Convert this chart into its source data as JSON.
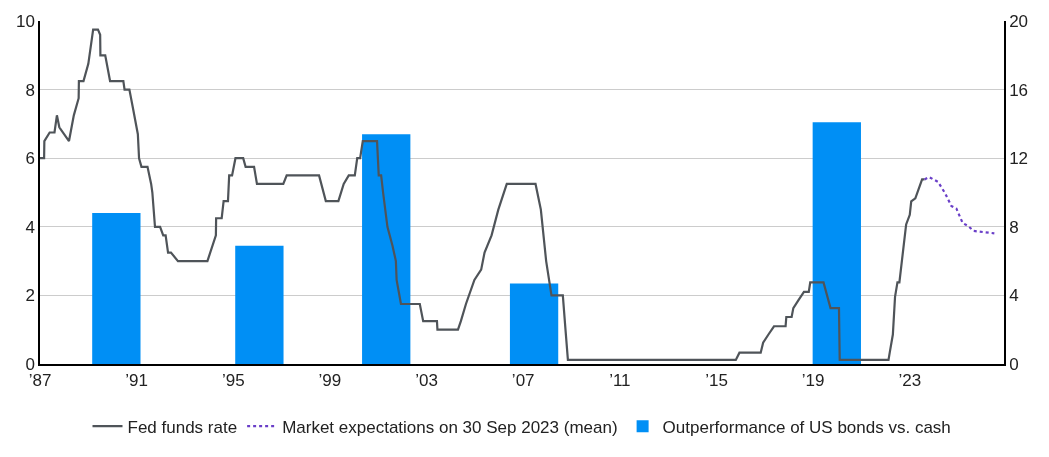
{
  "chart_data": {
    "type": "line",
    "xlim": [
      1987,
      2026.9
    ],
    "xticks": [
      {
        "value": 1987,
        "label": "’87"
      },
      {
        "value": 1991,
        "label": "’91"
      },
      {
        "value": 1995,
        "label": "’95"
      },
      {
        "value": 1999,
        "label": "’99"
      },
      {
        "value": 2003,
        "label": "’03"
      },
      {
        "value": 2007,
        "label": "’07"
      },
      {
        "value": 2011,
        "label": "’11"
      },
      {
        "value": 2015,
        "label": "’15"
      },
      {
        "value": 2019,
        "label": "’19"
      },
      {
        "value": 2023,
        "label": "’23"
      }
    ],
    "ylim": [
      0,
      10
    ],
    "yticks": [
      0,
      2,
      4,
      6,
      8,
      10
    ],
    "y2lim": [
      0,
      20
    ],
    "y2ticks": [
      0,
      4,
      8,
      12,
      16,
      20
    ],
    "grid": "y",
    "legend": "bottom",
    "series": [
      {
        "name": "Fed funds rate",
        "color": "#4f5459",
        "line_style": "solid",
        "x": [
          1987.0,
          1987.17,
          1987.18,
          1987.4,
          1987.6,
          1987.7,
          1987.8,
          1988.2,
          1988.4,
          1988.6,
          1988.61,
          1988.8,
          1989.0,
          1989.2,
          1989.4,
          1989.49,
          1989.5,
          1989.7,
          1989.9,
          1990.45,
          1990.5,
          1990.7,
          1990.85,
          1991.05,
          1991.1,
          1991.2,
          1991.45,
          1991.6,
          1991.65,
          1991.76,
          1991.97,
          1992.1,
          1992.2,
          1992.3,
          1992.42,
          1992.71,
          1993.93,
          1994.28,
          1994.29,
          1994.52,
          1994.6,
          1994.78,
          1994.83,
          1994.95,
          1995.09,
          1995.41,
          1995.51,
          1995.86,
          1995.98,
          1997.07,
          1997.21,
          1998.55,
          1998.83,
          1999.35,
          1999.57,
          1999.78,
          2000.03,
          2000.13,
          2000.25,
          2000.36,
          2000.95,
          2001.02,
          2001.12,
          2001.2,
          2001.38,
          2001.59,
          2001.73,
          2001.76,
          2001.94,
          2002.72,
          2002.86,
          2003.43,
          2003.45,
          2004.3,
          2004.42,
          2004.63,
          2004.98,
          2005.26,
          2005.4,
          2005.69,
          2005.97,
          2006.32,
          2006.34,
          2007.51,
          2007.73,
          2007.95,
          2008.17,
          2008.64,
          2008.75,
          2008.85,
          2015.8,
          2015.95,
          2016.83,
          2016.93,
          2017.15,
          2017.38,
          2017.86,
          2017.89,
          2018.11,
          2018.18,
          2018.4,
          2018.62,
          2018.82,
          2018.88,
          2019.43,
          2019.72,
          2020.07,
          2020.1,
          2022.12,
          2022.17,
          2022.3,
          2022.39,
          2022.49,
          2022.57,
          2022.85,
          2023.0,
          2023.06,
          2023.23,
          2023.51,
          2023.61
        ],
        "values": [
          6.0,
          6.0,
          6.5,
          6.75,
          6.75,
          7.25,
          6.9,
          6.5,
          7.25,
          7.75,
          8.25,
          8.25,
          8.75,
          9.75,
          9.75,
          9.6,
          9.0,
          9.0,
          8.25,
          8.25,
          8.0,
          8.0,
          7.45,
          6.7,
          6.0,
          5.75,
          5.75,
          5.25,
          5.0,
          4.0,
          4.0,
          3.75,
          3.75,
          3.25,
          3.25,
          3.0,
          3.0,
          3.75,
          4.25,
          4.25,
          4.75,
          4.75,
          5.5,
          5.5,
          6.0,
          6.0,
          5.75,
          5.75,
          5.25,
          5.25,
          5.5,
          5.5,
          4.75,
          4.75,
          5.25,
          5.5,
          5.5,
          6.0,
          6.0,
          6.5,
          6.5,
          5.5,
          5.5,
          5.0,
          4.0,
          3.45,
          3.0,
          2.45,
          1.75,
          1.75,
          1.25,
          1.25,
          1.0,
          1.0,
          1.25,
          1.75,
          2.45,
          2.75,
          3.25,
          3.75,
          4.5,
          5.25,
          5.25,
          5.25,
          4.5,
          3.0,
          2.0,
          2.0,
          1.0,
          0.12,
          0.12,
          0.33,
          0.33,
          0.62,
          0.86,
          1.1,
          1.1,
          1.37,
          1.37,
          1.63,
          1.87,
          2.1,
          2.1,
          2.38,
          2.38,
          1.63,
          1.63,
          0.12,
          0.12,
          0.33,
          0.86,
          1.96,
          2.38,
          2.38,
          4.07,
          4.35,
          4.74,
          4.83,
          5.38,
          5.38
        ]
      },
      {
        "name": "Market expectations on 30 Sep 2023 (mean)",
        "color": "#6a3fc8",
        "line_style": "dotted",
        "x": [
          2023.61,
          2023.8,
          2024.17,
          2024.46,
          2024.72,
          2024.93,
          2025.19,
          2025.42,
          2025.64,
          2026.5
        ],
        "values": [
          5.38,
          5.45,
          5.31,
          4.98,
          4.61,
          4.53,
          4.11,
          4.02,
          3.88,
          3.81
        ]
      },
      {
        "name": "Outperformance of US bonds vs. cash",
        "type": "bar",
        "axis": "y2",
        "color": "#008ff5",
        "x": [
          1990.16,
          1996.08,
          2001.33,
          2007.45,
          2019.98
        ],
        "values": [
          8.8,
          6.9,
          13.4,
          4.7,
          14.1
        ]
      }
    ]
  }
}
